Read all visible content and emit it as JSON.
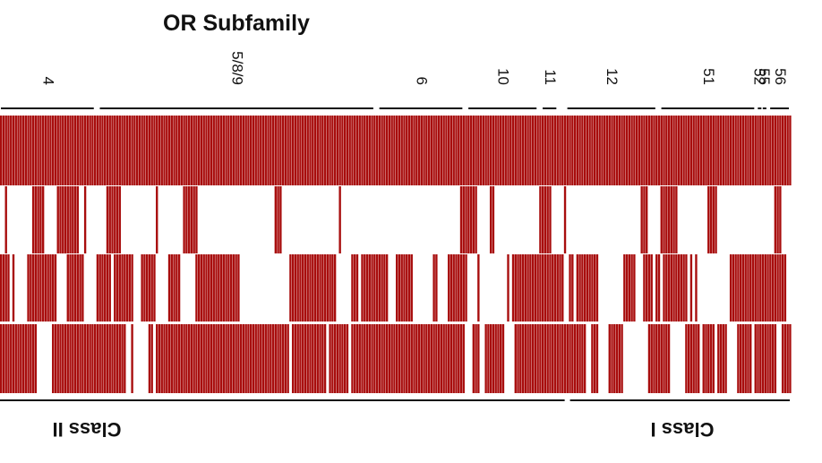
{
  "chart_data": {
    "type": "heatmap",
    "title": "OR Subfamily",
    "color": "#a80d0d",
    "background": "#ffffff",
    "rows": 4,
    "columns": 320,
    "subfamilies": [
      {
        "label": "4",
        "start": 0,
        "end": 38
      },
      {
        "label": "5/8/9",
        "start": 40,
        "end": 151
      },
      {
        "label": "6",
        "start": 153,
        "end": 187
      },
      {
        "label": "10",
        "start": 189,
        "end": 217
      },
      {
        "label": "11",
        "start": 219,
        "end": 225
      },
      {
        "label": "12",
        "start": 229,
        "end": 265
      },
      {
        "label": "51",
        "start": 267,
        "end": 305
      },
      {
        "label": "52",
        "start": 306,
        "end": 307
      },
      {
        "label": "55",
        "start": 308,
        "end": 309
      },
      {
        "label": "56",
        "start": 311,
        "end": 319
      }
    ],
    "classes": [
      {
        "label": "Class II",
        "start": 0,
        "end": 228
      },
      {
        "label": "Class I",
        "start": 229,
        "end": 319
      }
    ],
    "row_fill_fraction": [
      1.0,
      0.18,
      0.58,
      0.75
    ],
    "row_seeds": [
      7,
      13,
      29,
      41
    ]
  }
}
